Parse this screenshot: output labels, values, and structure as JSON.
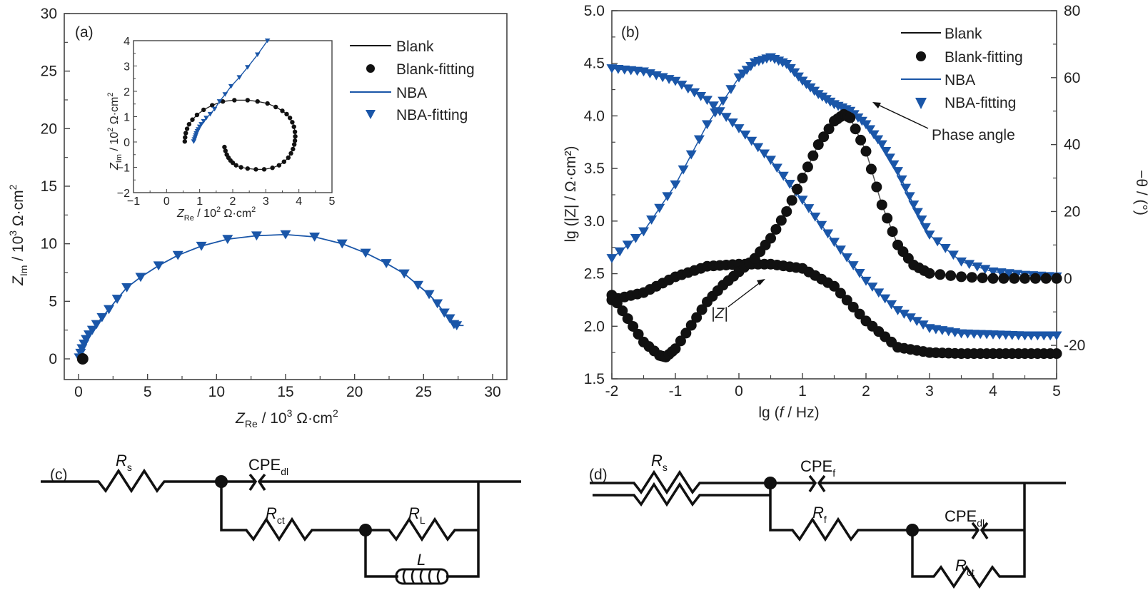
{
  "colors": {
    "blank": "#111111",
    "nba": "#1a56a8",
    "frame": "#444444"
  },
  "chart_data": [
    {
      "id": "a",
      "type": "scatter",
      "panel_label": "(a)",
      "title": "",
      "xlabel": "Z_Re / 10^3 Ω·cm²",
      "xlabel_parts": {
        "main": "Z",
        "sub": "Re",
        "rest": " / 10",
        "sup": "3",
        "unit": " Ω·cm",
        "sup2": "2"
      },
      "ylabel_parts": {
        "main": "Z",
        "sub": "Im",
        "rest": " / 10",
        "sup": "3",
        "unit": " Ω·cm",
        "sup2": "2"
      },
      "xlim": [
        0,
        30
      ],
      "ylim": [
        0,
        30
      ],
      "xticks": [
        "0",
        "5",
        "10",
        "15",
        "20",
        "25",
        "30"
      ],
      "yticks": [
        "0",
        "5",
        "10",
        "15",
        "20",
        "25",
        "30"
      ],
      "legend": {
        "placement": "top-right",
        "entries": [
          {
            "label": "Blank",
            "marker": "line",
            "series": "blank"
          },
          {
            "label": "Blank-fitting",
            "marker": "circle",
            "series": "blank"
          },
          {
            "label": "NBA",
            "marker": "line",
            "series": "nba"
          },
          {
            "label": "NBA-fitting",
            "marker": "triangle-down",
            "series": "nba"
          }
        ]
      },
      "series": [
        {
          "name": "NBA",
          "kind": "line+points",
          "x": [
            0.05,
            0.15,
            0.25,
            0.4,
            0.55,
            0.75,
            1.0,
            1.3,
            1.7,
            2.2,
            2.8,
            3.5,
            4.5,
            5.8,
            7.2,
            8.9,
            10.8,
            12.9,
            15.0,
            17.1,
            19.1,
            20.8,
            22.3,
            23.6,
            24.6,
            25.4,
            26.0,
            26.5,
            26.9,
            27.2,
            27.4
          ],
          "y": [
            0.1,
            0.5,
            0.9,
            1.3,
            1.7,
            2.1,
            2.5,
            3.0,
            3.6,
            4.3,
            5.2,
            6.2,
            7.1,
            8.1,
            9.0,
            9.8,
            10.4,
            10.7,
            10.8,
            10.6,
            10.0,
            9.2,
            8.3,
            7.4,
            6.4,
            5.6,
            4.8,
            4.0,
            3.5,
            3.0,
            2.9
          ]
        },
        {
          "name": "Blank",
          "kind": "points",
          "x": [
            0.3
          ],
          "y": [
            0.0
          ]
        }
      ],
      "inset": {
        "xlabel_parts": {
          "main": "Z",
          "sub": "Re",
          "rest": " / 10",
          "sup": "2",
          "unit": " Ω·cm",
          "sup2": "2"
        },
        "ylabel_parts": {
          "main": "Z",
          "sub": "Im",
          "rest": " / 10",
          "sup": "2",
          "unit": " Ω·cm",
          "sup2": "2"
        },
        "xlim": [
          -1,
          5
        ],
        "ylim": [
          -2,
          4
        ],
        "xticks": [
          "−1",
          "0",
          "1",
          "2",
          "3",
          "4",
          "5"
        ],
        "yticks": [
          "−2",
          "−1",
          "0",
          "1",
          "2",
          "3",
          "4"
        ],
        "series": [
          {
            "name": "Blank",
            "x": [
              1.75,
              1.78,
              1.82,
              1.87,
              1.93,
              2.0,
              2.1,
              2.25,
              2.45,
              2.7,
              2.95,
              3.2,
              3.4,
              3.55,
              3.68,
              3.76,
              3.82,
              3.86,
              3.88,
              3.89,
              3.88,
              3.85,
              3.8,
              3.73,
              3.63,
              3.5,
              3.3,
              3.05,
              2.75,
              2.45,
              2.05,
              1.7,
              1.38,
              1.12,
              0.92,
              0.78,
              0.68,
              0.62,
              0.58,
              0.56,
              0.55
            ],
            "y": [
              -0.2,
              -0.35,
              -0.5,
              -0.62,
              -0.73,
              -0.82,
              -0.92,
              -1.0,
              -1.05,
              -1.08,
              -1.08,
              -1.02,
              -0.92,
              -0.78,
              -0.62,
              -0.45,
              -0.28,
              -0.1,
              0.05,
              0.22,
              0.4,
              0.6,
              0.78,
              0.95,
              1.1,
              1.23,
              1.38,
              1.52,
              1.6,
              1.65,
              1.65,
              1.6,
              1.45,
              1.27,
              1.07,
              0.88,
              0.7,
              0.52,
              0.35,
              0.18,
              0.02
            ]
          },
          {
            "name": "NBA",
            "x": [
              0.82,
              0.84,
              0.86,
              0.88,
              0.9,
              0.93,
              0.96,
              1.0,
              1.05,
              1.12,
              1.2,
              1.32,
              1.45,
              1.6,
              1.77,
              1.95,
              2.2,
              2.45,
              2.75,
              3.05
            ],
            "y": [
              0.02,
              0.1,
              0.18,
              0.26,
              0.34,
              0.42,
              0.5,
              0.6,
              0.7,
              0.82,
              0.95,
              1.1,
              1.3,
              1.6,
              1.88,
              2.2,
              2.55,
              2.95,
              3.45,
              4.0
            ]
          }
        ]
      }
    },
    {
      "id": "b",
      "type": "scatter",
      "panel_label": "(b)",
      "xlabel": "lg (f / Hz)",
      "ylabel": "lg (|Z| / Ω·cm²)",
      "y2label": "−θ / (°)",
      "xlim": [
        -2,
        5
      ],
      "ylim": [
        1.5,
        5.0
      ],
      "y2lim": [
        -30,
        80
      ],
      "xticks": [
        "-2",
        "-1",
        "0",
        "1",
        "2",
        "3",
        "4",
        "5"
      ],
      "yticks": [
        "1.5",
        "2.0",
        "2.5",
        "3.0",
        "3.5",
        "4.0",
        "4.5",
        "5.0"
      ],
      "y2ticks": [
        "-20",
        "0",
        "20",
        "40",
        "60",
        "80"
      ],
      "legend": {
        "placement": "top-right",
        "entries": [
          {
            "label": "Blank",
            "marker": "line",
            "series": "blank"
          },
          {
            "label": "Blank-fitting",
            "marker": "circle",
            "series": "blank"
          },
          {
            "label": "NBA",
            "marker": "line",
            "series": "nba"
          },
          {
            "label": "NBA-fitting",
            "marker": "triangle-down",
            "series": "nba"
          }
        ]
      },
      "annotations": [
        {
          "text": "Phase angle",
          "points_to": [
            1.75,
            4.1
          ]
        },
        {
          "text": "|Z|",
          "points_to": [
            1.9,
            2.45
          ]
        }
      ],
      "series": [
        {
          "name": "NBA |Z|",
          "axis": "left",
          "x": [
            -2.0,
            -1.5,
            -1.0,
            -0.5,
            0.0,
            0.5,
            1.0,
            1.5,
            2.0,
            2.5,
            3.0,
            3.5,
            4.0,
            4.5,
            5.0
          ],
          "y": [
            4.45,
            4.42,
            4.33,
            4.15,
            3.88,
            3.58,
            3.2,
            2.8,
            2.43,
            2.15,
            1.98,
            1.93,
            1.92,
            1.91,
            1.91
          ]
        },
        {
          "name": "NBA phase",
          "axis": "right",
          "x": [
            -2.0,
            -1.5,
            -1.0,
            -0.5,
            0.0,
            0.25,
            0.5,
            0.75,
            1.0,
            1.25,
            1.5,
            1.75,
            2.0,
            2.25,
            2.5,
            2.75,
            3.0,
            3.5,
            4.0,
            4.5,
            5.0
          ],
          "y": [
            6,
            14,
            28,
            46,
            60,
            64.5,
            66,
            64,
            59,
            55,
            52,
            50,
            46,
            40,
            32,
            22,
            13,
            5,
            2,
            1,
            0.5
          ]
        },
        {
          "name": "Blank |Z|",
          "axis": "left",
          "x": [
            -2.0,
            -1.5,
            -1.0,
            -0.5,
            0.0,
            0.5,
            1.0,
            1.5,
            2.0,
            2.5,
            3.0,
            3.5,
            4.0,
            4.5,
            5.0
          ],
          "y": [
            2.25,
            2.32,
            2.47,
            2.57,
            2.59,
            2.59,
            2.55,
            2.38,
            2.05,
            1.8,
            1.75,
            1.74,
            1.74,
            1.74,
            1.74
          ]
        },
        {
          "name": "Blank phase",
          "axis": "right",
          "x": [
            -2.0,
            -1.75,
            -1.5,
            -1.25,
            -1.15,
            -1.0,
            -0.75,
            -0.5,
            -0.25,
            0.0,
            0.25,
            0.5,
            0.75,
            1.0,
            1.25,
            1.5,
            1.65,
            1.75,
            2.0,
            2.25,
            2.5,
            2.75,
            3.0,
            3.5,
            4.0,
            4.5,
            5.0
          ],
          "y": [
            -5,
            -12,
            -19,
            -23,
            -23.5,
            -21,
            -14,
            -7,
            -2,
            2,
            6,
            12,
            20,
            30,
            40,
            47,
            49,
            48,
            38,
            22,
            10,
            4,
            1.5,
            0.5,
            0,
            0,
            0
          ]
        }
      ]
    }
  ],
  "circuits": {
    "c": {
      "panel_label": "(c)",
      "elements": [
        {
          "id": "Rs",
          "symbol": "R",
          "sub": "s"
        },
        {
          "id": "CPEdl",
          "symbol": "CPE",
          "sub": "dl"
        },
        {
          "id": "Rct",
          "symbol": "R",
          "sub": "ct"
        },
        {
          "id": "RL",
          "symbol": "R",
          "sub": "L"
        },
        {
          "id": "L",
          "symbol": "L",
          "sub": ""
        }
      ]
    },
    "d": {
      "panel_label": "(d)",
      "elements": [
        {
          "id": "Rs",
          "symbol": "R",
          "sub": "s"
        },
        {
          "id": "CPEf",
          "symbol": "CPE",
          "sub": "f"
        },
        {
          "id": "Rf",
          "symbol": "R",
          "sub": "f"
        },
        {
          "id": "CPEdl",
          "symbol": "CPE",
          "sub": "dl"
        },
        {
          "id": "Rct",
          "symbol": "R",
          "sub": "ct"
        }
      ]
    }
  }
}
